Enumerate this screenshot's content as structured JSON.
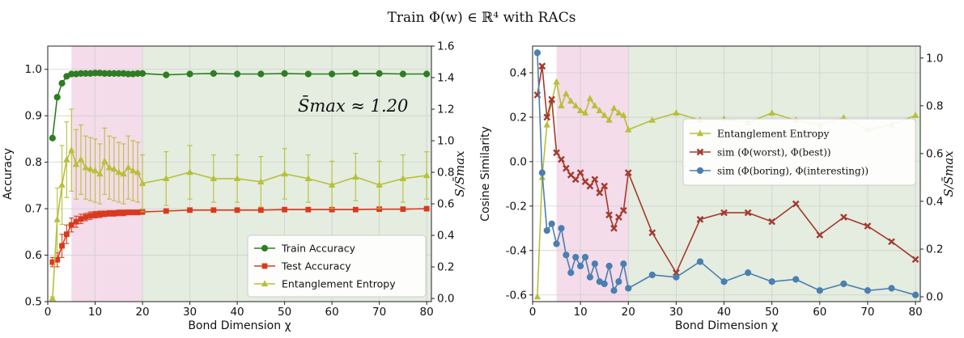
{
  "figure": {
    "title": "Train Φ(w) ∈ ℝ⁴ with RACs"
  },
  "colors": {
    "train": "#2e7d23",
    "test": "#d93a1e",
    "entropy": "#b8bf3a",
    "worst_best": "#a33a2e",
    "boring_interesting": "#4a7fb0",
    "shade_pink": "#f2d6e6",
    "shade_green": "#dfeadb"
  },
  "chart_data": [
    {
      "type": "line",
      "name": "left-panel",
      "xlabel": "Bond Dimension χ",
      "ylabel": "Accuracy",
      "ylabel_right": "S/S̄max",
      "xlim": [
        0,
        81
      ],
      "ylim": [
        0.5,
        1.05
      ],
      "ylim_right": [
        -0.02,
        1.6
      ],
      "xticks": [
        0,
        10,
        20,
        30,
        40,
        50,
        60,
        70,
        80
      ],
      "yticks": [
        0.5,
        0.6,
        0.7,
        0.8,
        0.9,
        1.0
      ],
      "yticks_right": [
        0.0,
        0.2,
        0.4,
        0.6,
        0.8,
        1.0,
        1.2,
        1.4,
        1.6
      ],
      "grid": true,
      "shaded_regions": [
        {
          "from": 5,
          "to": 20,
          "color_key": "shade_pink"
        },
        {
          "from": 20,
          "to": 81,
          "color_key": "shade_green"
        }
      ],
      "annotation": "S̄max ≈ 1.20",
      "legend_position": "lower-right",
      "series": [
        {
          "name": "Train Accuracy",
          "color_key": "train",
          "marker": "circle",
          "axis": "left",
          "x": [
            1,
            2,
            3,
            4,
            5,
            6,
            7,
            8,
            9,
            10,
            11,
            12,
            13,
            14,
            15,
            16,
            17,
            18,
            19,
            20,
            25,
            30,
            35,
            40,
            45,
            50,
            55,
            60,
            65,
            70,
            75,
            80
          ],
          "y": [
            0.852,
            0.94,
            0.97,
            0.985,
            0.99,
            0.99,
            0.991,
            0.991,
            0.991,
            0.992,
            0.992,
            0.991,
            0.991,
            0.991,
            0.991,
            0.991,
            0.99,
            0.99,
            0.991,
            0.991,
            0.988,
            0.99,
            0.991,
            0.99,
            0.99,
            0.991,
            0.99,
            0.99,
            0.991,
            0.991,
            0.99,
            0.99
          ]
        },
        {
          "name": "Test Accuracy",
          "color_key": "test",
          "marker": "square",
          "axis": "left",
          "x": [
            1,
            2,
            3,
            4,
            5,
            6,
            7,
            8,
            9,
            10,
            11,
            12,
            13,
            14,
            15,
            16,
            17,
            18,
            19,
            20,
            25,
            30,
            35,
            40,
            45,
            50,
            55,
            60,
            65,
            70,
            75,
            80
          ],
          "y": [
            0.585,
            0.59,
            0.62,
            0.645,
            0.665,
            0.672,
            0.678,
            0.682,
            0.685,
            0.687,
            0.688,
            0.689,
            0.69,
            0.69,
            0.691,
            0.691,
            0.692,
            0.692,
            0.692,
            0.693,
            0.695,
            0.697,
            0.697,
            0.697,
            0.697,
            0.698,
            0.698,
            0.698,
            0.698,
            0.699,
            0.699,
            0.7
          ],
          "err": [
            0.01,
            0.015,
            0.025,
            0.02,
            0.015,
            0.012,
            0.01,
            0.008,
            0.008,
            0.007,
            0.007,
            0.006,
            0.006,
            0.006,
            0.006,
            0.006,
            0.005,
            0.005,
            0.005,
            0.005,
            0.004,
            0.004,
            0.004,
            0.004,
            0.004,
            0.004,
            0.004,
            0.004,
            0.004,
            0.004,
            0.004,
            0.004
          ]
        },
        {
          "name": "Entanglement Entropy",
          "color_key": "entropy",
          "marker": "triangle",
          "axis": "right",
          "x": [
            1,
            2,
            3,
            4,
            5,
            6,
            7,
            8,
            9,
            10,
            11,
            12,
            13,
            14,
            15,
            16,
            17,
            18,
            19,
            20,
            25,
            30,
            35,
            40,
            45,
            50,
            55,
            60,
            65,
            70,
            75,
            80
          ],
          "y": [
            0.0,
            0.5,
            0.72,
            0.88,
            0.94,
            0.85,
            0.88,
            0.83,
            0.82,
            0.81,
            0.79,
            0.87,
            0.83,
            0.82,
            0.8,
            0.79,
            0.83,
            0.81,
            0.8,
            0.73,
            0.76,
            0.8,
            0.76,
            0.76,
            0.74,
            0.79,
            0.76,
            0.72,
            0.77,
            0.72,
            0.76,
            0.78
          ],
          "err": [
            0.01,
            0.2,
            0.25,
            0.24,
            0.26,
            0.22,
            0.22,
            0.2,
            0.2,
            0.2,
            0.19,
            0.21,
            0.2,
            0.2,
            0.19,
            0.19,
            0.2,
            0.19,
            0.19,
            0.18,
            0.17,
            0.17,
            0.15,
            0.15,
            0.16,
            0.16,
            0.15,
            0.15,
            0.15,
            0.15,
            0.15,
            0.15
          ]
        }
      ]
    },
    {
      "type": "line",
      "name": "right-panel",
      "xlabel": "Bond Dimension χ",
      "ylabel": "Cosine Similarity",
      "ylabel_right": "S/S̄max",
      "xlim": [
        0,
        81
      ],
      "ylim": [
        -0.63,
        0.52
      ],
      "ylim_right": [
        -0.02,
        1.05
      ],
      "xticks": [
        0,
        10,
        20,
        30,
        40,
        50,
        60,
        70,
        80
      ],
      "yticks": [
        -0.6,
        -0.4,
        -0.2,
        0.0,
        0.2,
        0.4
      ],
      "yticks_right": [
        0.0,
        0.2,
        0.4,
        0.6,
        0.8,
        1.0
      ],
      "grid": true,
      "shaded_regions": [
        {
          "from": 5,
          "to": 20,
          "color_key": "shade_pink"
        },
        {
          "from": 20,
          "to": 81,
          "color_key": "shade_green"
        }
      ],
      "legend_position": "center-right",
      "series": [
        {
          "name": "Entanglement Entropy",
          "color_key": "entropy",
          "marker": "triangle",
          "axis": "right",
          "x": [
            1,
            2,
            3,
            4,
            5,
            6,
            7,
            8,
            9,
            10,
            11,
            12,
            13,
            14,
            15,
            16,
            17,
            18,
            19,
            20,
            25,
            30,
            35,
            40,
            45,
            50,
            55,
            60,
            65,
            70,
            75,
            80
          ],
          "y": [
            0.0,
            0.5,
            0.72,
            0.82,
            0.9,
            0.8,
            0.85,
            0.82,
            0.8,
            0.78,
            0.77,
            0.83,
            0.8,
            0.78,
            0.76,
            0.74,
            0.79,
            0.77,
            0.76,
            0.7,
            0.74,
            0.77,
            0.74,
            0.745,
            0.73,
            0.77,
            0.74,
            0.72,
            0.75,
            0.7,
            0.72,
            0.76
          ]
        },
        {
          "name": "sim (Φ(worst), Φ(best))",
          "color_key": "worst_best",
          "marker": "x",
          "axis": "left",
          "x": [
            1,
            2,
            3,
            4,
            5,
            6,
            7,
            8,
            9,
            10,
            11,
            12,
            13,
            14,
            15,
            16,
            17,
            18,
            19,
            20,
            25,
            30,
            35,
            40,
            45,
            50,
            55,
            60,
            65,
            70,
            75,
            80
          ],
          "y": [
            0.3,
            0.43,
            0.2,
            0.28,
            0.04,
            0.01,
            -0.03,
            -0.06,
            -0.08,
            -0.05,
            -0.09,
            -0.11,
            -0.08,
            -0.14,
            -0.11,
            -0.24,
            -0.3,
            -0.25,
            -0.22,
            -0.05,
            -0.32,
            -0.5,
            -0.26,
            -0.23,
            -0.23,
            -0.27,
            -0.19,
            -0.33,
            -0.25,
            -0.29,
            -0.36,
            -0.44
          ]
        },
        {
          "name": "sim (Φ(boring), Φ(interesting))",
          "color_key": "boring_interesting",
          "marker": "circle",
          "axis": "left",
          "x": [
            1,
            2,
            3,
            4,
            5,
            6,
            7,
            8,
            9,
            10,
            11,
            12,
            13,
            14,
            15,
            16,
            17,
            18,
            19,
            20,
            25,
            30,
            35,
            40,
            45,
            50,
            55,
            60,
            65,
            70,
            75,
            80
          ],
          "y": [
            0.49,
            -0.05,
            -0.31,
            -0.28,
            -0.37,
            -0.3,
            -0.42,
            -0.5,
            -0.43,
            -0.47,
            -0.43,
            -0.52,
            -0.46,
            -0.54,
            -0.55,
            -0.47,
            -0.58,
            -0.54,
            -0.46,
            -0.57,
            -0.51,
            -0.52,
            -0.45,
            -0.54,
            -0.5,
            -0.54,
            -0.53,
            -0.58,
            -0.55,
            -0.58,
            -0.57,
            -0.6
          ]
        }
      ]
    }
  ]
}
